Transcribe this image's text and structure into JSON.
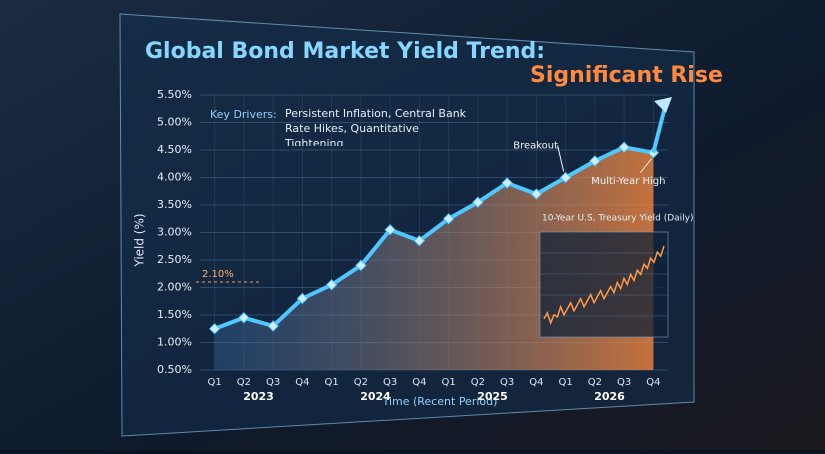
{
  "chart_data": {
    "type": "line",
    "title": "Global Bond Market Yield Trend:",
    "title_emphasis": "Significant Rise",
    "key_drivers_label": "Key Drivers:",
    "key_drivers": "Persistent Inflation, Central Bank Rate Hikes, Quantitative Tightening",
    "y_label": "Yield (%)",
    "x_label": "Time (Recent Period)",
    "categories": [
      "Q1",
      "Q2",
      "Q3",
      "Q4",
      "Q1",
      "Q2",
      "Q3",
      "Q4",
      "Q1",
      "Q2",
      "Q3",
      "Q4",
      "Q1",
      "Q2",
      "Q3",
      "Q4"
    ],
    "years": [
      "2023",
      "2024",
      "2025",
      "2026"
    ],
    "series": [
      {
        "name": "Yield",
        "color": "#4fc8ff",
        "values": [
          1.25,
          1.45,
          1.3,
          1.8,
          2.05,
          2.4,
          3.05,
          2.85,
          3.25,
          3.55,
          3.9,
          3.7,
          4.0,
          4.3,
          4.55,
          4.45
        ]
      }
    ],
    "ylim": [
      0.5,
      5.5
    ],
    "yticks": [
      {
        "value": 0.5,
        "label": "0.50%"
      },
      {
        "value": 1.0,
        "label": "1.00%"
      },
      {
        "value": 1.5,
        "label": "1.50%"
      },
      {
        "value": 2.0,
        "label": "2.00%"
      },
      {
        "value": 2.5,
        "label": "2.50%"
      },
      {
        "value": 3.0,
        "label": "3.00%"
      },
      {
        "value": 3.5,
        "label": "3.50%"
      },
      {
        "value": 4.0,
        "label": "4.00%"
      },
      {
        "value": 4.5,
        "label": "4.50%"
      },
      {
        "value": 5.0,
        "label": "5.00%"
      },
      {
        "value": 5.5,
        "label": "5.50%"
      }
    ],
    "grid": true,
    "reference_line": {
      "value": 2.1,
      "label": "2.10%"
    },
    "annotations": [
      {
        "text": "Breakout",
        "index": 12
      },
      {
        "text": "Multi-Year High",
        "index": 15
      }
    ],
    "inset": {
      "title": "10-Year U.S. Treasury Yield (Daily)",
      "color": "#ff9a4a",
      "values": [
        1.2,
        1.35,
        1.1,
        1.3,
        1.25,
        1.5,
        1.3,
        1.45,
        1.6,
        1.4,
        1.55,
        1.7,
        1.5,
        1.65,
        1.8,
        1.6,
        1.75,
        1.9,
        1.7,
        1.85,
        2.0,
        1.85,
        2.1,
        1.95,
        2.2,
        2.05,
        2.3,
        2.15,
        2.4,
        2.3,
        2.55,
        2.45,
        2.7,
        2.6,
        2.85,
        2.75,
        3.0
      ]
    }
  }
}
